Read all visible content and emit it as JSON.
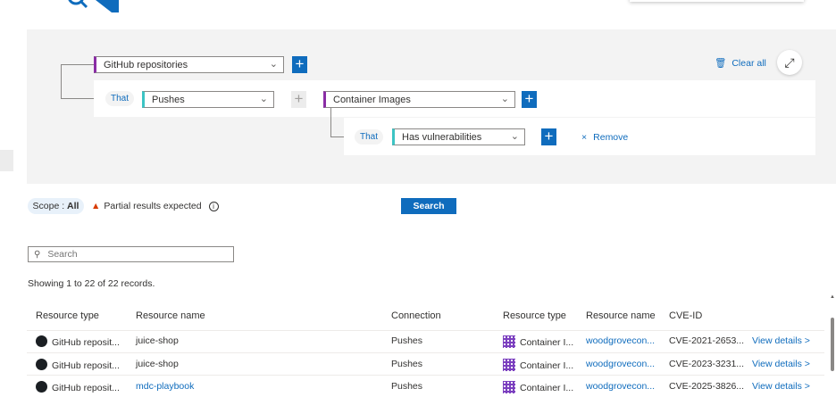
{
  "builder": {
    "root": {
      "value": "GitHub repositories"
    },
    "level1": {
      "that": "That",
      "relation": "Pushes",
      "target": "Container Images"
    },
    "level2": {
      "that": "That",
      "relation": "Has vulnerabilities",
      "remove_label": "Remove"
    },
    "clear_all": "Clear all"
  },
  "scope": {
    "label": "Scope :",
    "value": "All"
  },
  "warning": "Partial results expected",
  "search_button": "Search",
  "search_input": {
    "placeholder": "Search",
    "value": ""
  },
  "records_text": "Showing 1 to 22 of 22 records.",
  "colors": {
    "accent": "#0f6cbd",
    "purple": "#8a2da5",
    "teal": "#3cc4c4",
    "warning": "#d83b01"
  },
  "table": {
    "headers": [
      "Resource type",
      "Resource name",
      "Connection",
      "Resource type",
      "Resource name",
      "CVE-ID"
    ],
    "rows": [
      {
        "type": "GitHub reposit...",
        "name": "juice-shop",
        "name_link": false,
        "connection": "Pushes",
        "target_type": "Container I...",
        "target_name": "woodgrovecon...",
        "cve": "CVE-2021-2653...",
        "action": "View details >"
      },
      {
        "type": "GitHub reposit...",
        "name": "juice-shop",
        "name_link": false,
        "connection": "Pushes",
        "target_type": "Container I...",
        "target_name": "woodgrovecon...",
        "cve": "CVE-2023-3231...",
        "action": "View details >"
      },
      {
        "type": "GitHub reposit...",
        "name": "mdc-playbook",
        "name_link": true,
        "connection": "Pushes",
        "target_type": "Container I...",
        "target_name": "woodgrovecon...",
        "cve": "CVE-2025-3826...",
        "action": "View details >"
      }
    ]
  }
}
